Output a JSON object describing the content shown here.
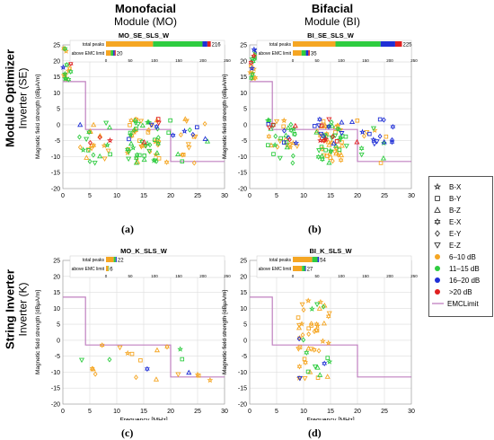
{
  "columns": [
    {
      "bold": "Monofacial",
      "normal": "Module (MO)"
    },
    {
      "bold": "Bifacial",
      "normal": "Module (BI)"
    }
  ],
  "rows": [
    {
      "bold": "Module Optimizer",
      "normal": "Inverter (SE)"
    },
    {
      "bold": "String Inverter",
      "normal": "Inverter (K)"
    }
  ],
  "axis": {
    "ylabel": "Magnetic field strength [dBμA/m]",
    "xlabel": "Frequency [MHz]",
    "xlim": [
      0,
      30
    ],
    "ylim": [
      -20,
      25
    ],
    "xticks": [
      0,
      5,
      10,
      15,
      20,
      25,
      30
    ],
    "yticks": [
      -20,
      -15,
      -10,
      -5,
      0,
      5,
      10,
      15,
      20,
      25
    ],
    "bar_ticks": [
      0,
      50,
      100,
      150,
      200,
      250
    ],
    "bar_labels": {
      "total": "total peaks",
      "above": "above EMC limit"
    }
  },
  "legend": {
    "markers": [
      {
        "label": "B-X",
        "shape": "pentagram"
      },
      {
        "label": "B-Y",
        "shape": "square"
      },
      {
        "label": "B-Z",
        "shape": "triangle-up"
      },
      {
        "label": "E-X",
        "shape": "hexagram"
      },
      {
        "label": "E-Y",
        "shape": "diamond"
      },
      {
        "label": "E-Z",
        "shape": "triangle-down"
      }
    ],
    "colors": [
      {
        "label": "6–10 dB",
        "color": "#f5a623"
      },
      {
        "label": "11–15 dB",
        "color": "#2ecc40"
      },
      {
        "label": "16–20 dB",
        "color": "#1f2fd6"
      },
      {
        "label": ">20 dB",
        "color": "#e02020"
      }
    ],
    "limit": {
      "label": "EMCLimit",
      "color": "#c080c0"
    }
  },
  "chart_data": [
    {
      "type": "scatter",
      "panel": "(a)",
      "title": "MO_SE_SLS_W",
      "total_peaks": 216,
      "above_limit": 20,
      "total_split": [
        97,
        102,
        10,
        7
      ],
      "above_split": [
        10,
        5,
        3,
        2
      ]
    },
    {
      "type": "scatter",
      "panel": "(b)",
      "title": "BI_SE_SLS_W",
      "total_peaks": 225,
      "above_limit": 35,
      "total_split": [
        88,
        93,
        30,
        14
      ],
      "above_split": [
        18,
        9,
        5,
        3
      ]
    },
    {
      "type": "scatter",
      "panel": "(c)",
      "title": "MO_K_SLS_W",
      "total_peaks": 22,
      "above_limit": 6,
      "total_split": [
        16,
        4,
        2,
        0
      ],
      "above_split": [
        5,
        1,
        0,
        0
      ]
    },
    {
      "type": "scatter",
      "panel": "(d)",
      "title": "BI_K_SLS_W",
      "total_peaks": 54,
      "above_limit": 27,
      "total_split": [
        40,
        11,
        3,
        0
      ],
      "above_split": [
        19,
        6,
        2,
        0
      ]
    }
  ],
  "emc_limit": {
    "x": [
      0,
      4.2,
      4.2,
      20,
      20,
      30
    ],
    "y": [
      13.5,
      13.5,
      -1.5,
      -1.5,
      -11.5,
      -11.5
    ]
  }
}
